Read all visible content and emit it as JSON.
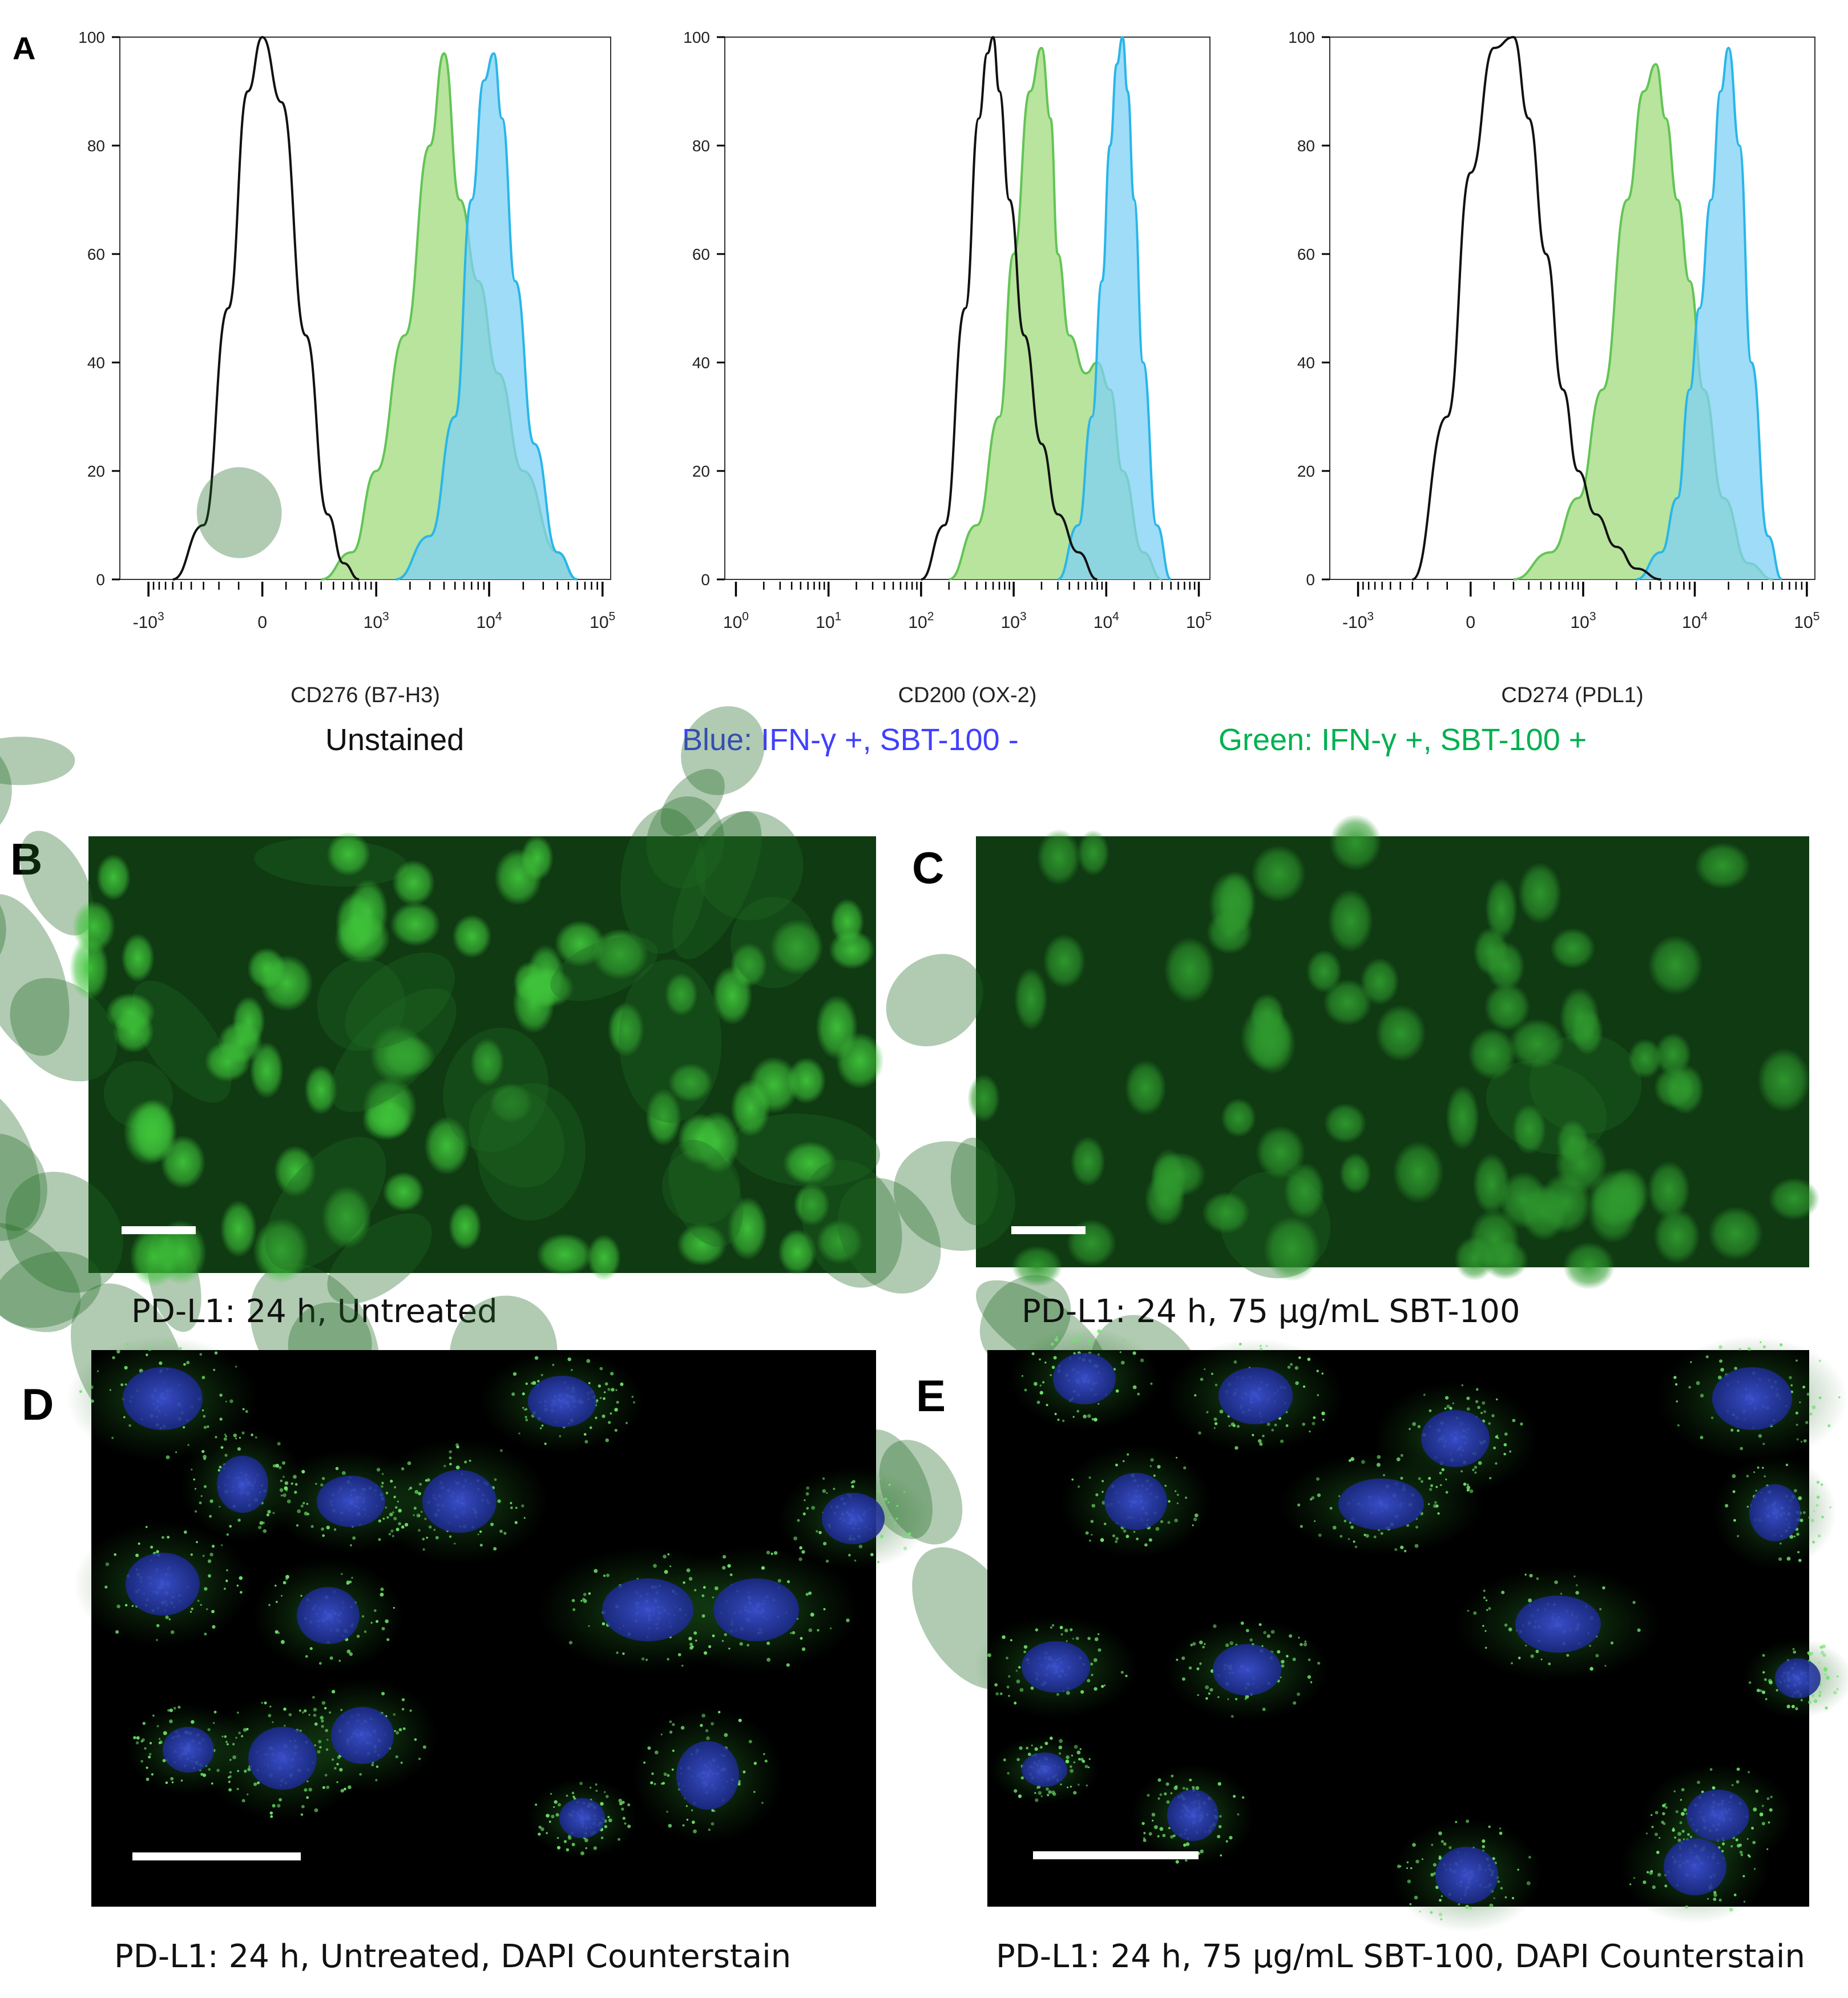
{
  "panel_letters": {
    "A": "A",
    "B": "B",
    "C": "C",
    "D": "D",
    "E": "E"
  },
  "colors": {
    "unstained": "#111111",
    "blue_fill": "#7fd0f5",
    "blue_line": "#29b6e8",
    "green_fill": "#a6dd85",
    "green_line": "#63c455",
    "legend_blue": "#4040ff",
    "legend_green": "#00b050"
  },
  "legend": {
    "unstained": "Unstained",
    "blue": "Blue: IFN-γ +, SBT-100 -",
    "green": "Green: IFN-γ +, SBT-100 +"
  },
  "chart_data": [
    {
      "type": "area",
      "xlabel": "CD276 (B7-H3)",
      "x_scale": "biexponential",
      "x_ticks": [
        "-10^3",
        "0",
        "10^3",
        "10^4",
        "10^5"
      ],
      "y_ticks": [
        "0",
        "20",
        "40",
        "60",
        "80",
        "100"
      ],
      "ylim": [
        0,
        100
      ],
      "series": [
        {
          "key": "unstained",
          "x": [
            -600,
            -300,
            -150,
            -60,
            0,
            80,
            200,
            350,
            500,
            700
          ],
          "y": [
            0,
            10,
            50,
            90,
            100,
            88,
            45,
            12,
            3,
            0
          ]
        },
        {
          "key": "green",
          "x": [
            300,
            600,
            1000,
            1800,
            3000,
            4000,
            5500,
            8000,
            12000,
            20000,
            40000,
            60000
          ],
          "y": [
            0,
            5,
            20,
            45,
            80,
            97,
            70,
            55,
            38,
            20,
            5,
            0
          ]
        },
        {
          "key": "blue",
          "x": [
            1500,
            3000,
            5000,
            7000,
            9000,
            11000,
            13000,
            17000,
            25000,
            40000,
            60000
          ],
          "y": [
            0,
            8,
            30,
            70,
            92,
            97,
            85,
            55,
            25,
            5,
            0
          ]
        }
      ]
    },
    {
      "type": "area",
      "xlabel": "CD200 (OX-2)",
      "x_scale": "log",
      "x_ticks": [
        "10^0",
        "10^1",
        "10^2",
        "10^3",
        "10^4",
        "10^5"
      ],
      "y_ticks": [
        "0",
        "20",
        "40",
        "60",
        "80",
        "100"
      ],
      "ylim": [
        0,
        100
      ],
      "series": [
        {
          "key": "unstained",
          "x": [
            100,
            180,
            300,
            420,
            520,
            600,
            700,
            900,
            1300,
            2000,
            3000,
            5000,
            8000
          ],
          "y": [
            0,
            10,
            50,
            85,
            97,
            100,
            90,
            70,
            45,
            25,
            12,
            5,
            0
          ]
        },
        {
          "key": "green",
          "x": [
            200,
            400,
            700,
            1000,
            1500,
            2000,
            2500,
            3000,
            4000,
            6000,
            8000,
            11000,
            15000,
            25000,
            40000
          ],
          "y": [
            0,
            10,
            30,
            60,
            90,
            98,
            85,
            60,
            45,
            38,
            40,
            35,
            20,
            5,
            0
          ]
        },
        {
          "key": "blue",
          "x": [
            3000,
            5000,
            7000,
            9000,
            11000,
            13000,
            15000,
            17000,
            20000,
            25000,
            35000,
            50000
          ],
          "y": [
            0,
            10,
            30,
            55,
            80,
            95,
            100,
            90,
            70,
            40,
            10,
            0
          ]
        }
      ]
    },
    {
      "type": "area",
      "xlabel": "CD274 (PDL1)",
      "x_scale": "biexponential",
      "x_ticks": [
        "-10^3",
        "0",
        "10^3",
        "10^4",
        "10^5"
      ],
      "y_ticks": [
        "0",
        "20",
        "40",
        "60",
        "80",
        "100"
      ],
      "ylim": [
        0,
        100
      ],
      "series": [
        {
          "key": "unstained",
          "x": [
            -300,
            -100,
            0,
            100,
            200,
            300,
            450,
            650,
            900,
            1300,
            2000,
            3000,
            5000
          ],
          "y": [
            0,
            30,
            75,
            98,
            100,
            85,
            60,
            35,
            20,
            12,
            6,
            2,
            0
          ]
        },
        {
          "key": "green",
          "x": [
            200,
            500,
            900,
            1500,
            2500,
            3500,
            4500,
            5500,
            7000,
            9000,
            12000,
            18000,
            30000,
            50000
          ],
          "y": [
            0,
            5,
            15,
            35,
            70,
            90,
            95,
            85,
            70,
            55,
            35,
            15,
            3,
            0
          ]
        },
        {
          "key": "blue",
          "x": [
            3000,
            5000,
            7000,
            9000,
            11000,
            14000,
            17000,
            20000,
            25000,
            32000,
            45000,
            60000
          ],
          "y": [
            0,
            5,
            15,
            35,
            50,
            70,
            90,
            98,
            80,
            40,
            8,
            0
          ]
        }
      ]
    }
  ],
  "captions": {
    "B": "PD-L1: 24 h, Untreated",
    "C": "PD-L1: 24 h, 75 μg/mL SBT-100",
    "D": "PD-L1: 24 h, Untreated, DAPI Counterstain",
    "E": "PD-L1: 24 h, 75 μg/mL SBT-100, DAPI Counterstain"
  }
}
